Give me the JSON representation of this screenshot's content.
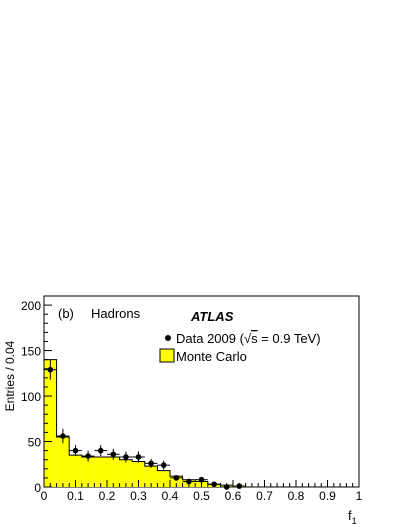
{
  "chart_data": {
    "type": "bar",
    "panel_label": "(b)",
    "subtitle": "Hadrons",
    "experiment": "ATLAS",
    "xlabel": "f",
    "xlabel_sub": "1",
    "ylabel": "Entries / 0.04",
    "xlim": [
      0,
      1
    ],
    "ylim": [
      0,
      210
    ],
    "x_ticks": [
      0,
      0.1,
      0.2,
      0.3,
      0.4,
      0.5,
      0.6,
      0.7,
      0.8,
      0.9,
      1
    ],
    "x_tick_labels": [
      "0",
      "0.1",
      "0.2",
      "0.3",
      "0.4",
      "0.5",
      "0.6",
      "0.7",
      "0.8",
      "0.9",
      "1"
    ],
    "y_ticks": [
      0,
      50,
      100,
      150,
      200
    ],
    "y_tick_labels": [
      "0",
      "50",
      "100",
      "150",
      "200"
    ],
    "legend": {
      "placement": "top-right",
      "data_label_pre": "Data 2009 (",
      "sqrt_symbol": "√",
      "data_label_s": "s",
      "data_label_post": " = 0.9 TeV)",
      "mc_label": "Monte Carlo"
    },
    "bin_edges": [
      0,
      0.04,
      0.08,
      0.12,
      0.16,
      0.2,
      0.24,
      0.28,
      0.32,
      0.36,
      0.4,
      0.44,
      0.48,
      0.52,
      0.56,
      0.6,
      0.64,
      0.68,
      0.72,
      0.76,
      0.8,
      0.84,
      0.88,
      0.92,
      0.96,
      1.0
    ],
    "series": [
      {
        "name": "Monte Carlo",
        "color": "#ffff00",
        "values": [
          140,
          55,
          35,
          33,
          33,
          33,
          30,
          28,
          23,
          18,
          12,
          8,
          6,
          3,
          2,
          1,
          0,
          0,
          0,
          0,
          0,
          0,
          0,
          0,
          0
        ]
      },
      {
        "name": "Data 2009",
        "color": "#000000",
        "x": [
          0.02,
          0.06,
          0.1,
          0.14,
          0.18,
          0.22,
          0.26,
          0.3,
          0.34,
          0.38,
          0.42,
          0.46,
          0.5,
          0.54,
          0.58,
          0.62
        ],
        "values": [
          129,
          56,
          40,
          34,
          40,
          36,
          33,
          33,
          26,
          24,
          10,
          6,
          8,
          3,
          0,
          1
        ],
        "errors": [
          11,
          8,
          6,
          6,
          6,
          6,
          6,
          6,
          5,
          5,
          3,
          3,
          3,
          2,
          1,
          1
        ]
      }
    ]
  }
}
